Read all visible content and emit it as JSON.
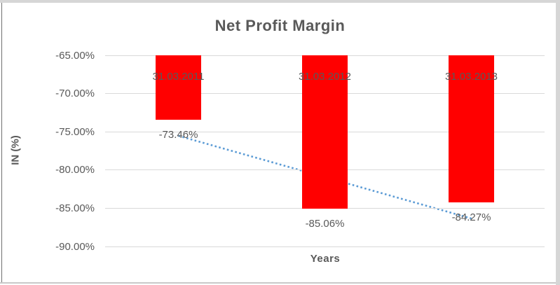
{
  "surround_color": "#d6d6d6",
  "chart_background": "#ffffff",
  "chart_data": {
    "type": "bar",
    "title": "Net Profit Margin",
    "xlabel": "Years",
    "ylabel": "IN (%)",
    "categories": [
      "31.03.2011",
      "31.03.2012",
      "31.03.2013"
    ],
    "series": [
      {
        "name": "Net Profit Margin",
        "values": [
          -73.46,
          -85.06,
          -84.27
        ]
      }
    ],
    "data_labels": [
      "-73.46%",
      "-85.06%",
      "-84.27%"
    ],
    "ylim": [
      -90,
      -65
    ],
    "yticks": [
      -65,
      -70,
      -75,
      -80,
      -85,
      -90
    ],
    "ytick_labels": [
      "-65.00%",
      "-70.00%",
      "-75.00%",
      "-80.00%",
      "-85.00%",
      "-90.00%"
    ],
    "grid": true,
    "legend": "none",
    "bar_color": "#FF0000",
    "text_color": "#595959",
    "gridline_color": "#D9D9D9",
    "trendline": {
      "type": "linear",
      "style": "dotted",
      "color": "#5B9BD5"
    },
    "label_positions": {
      "category_labels": "inside-top",
      "data_labels": "outside-end"
    }
  }
}
